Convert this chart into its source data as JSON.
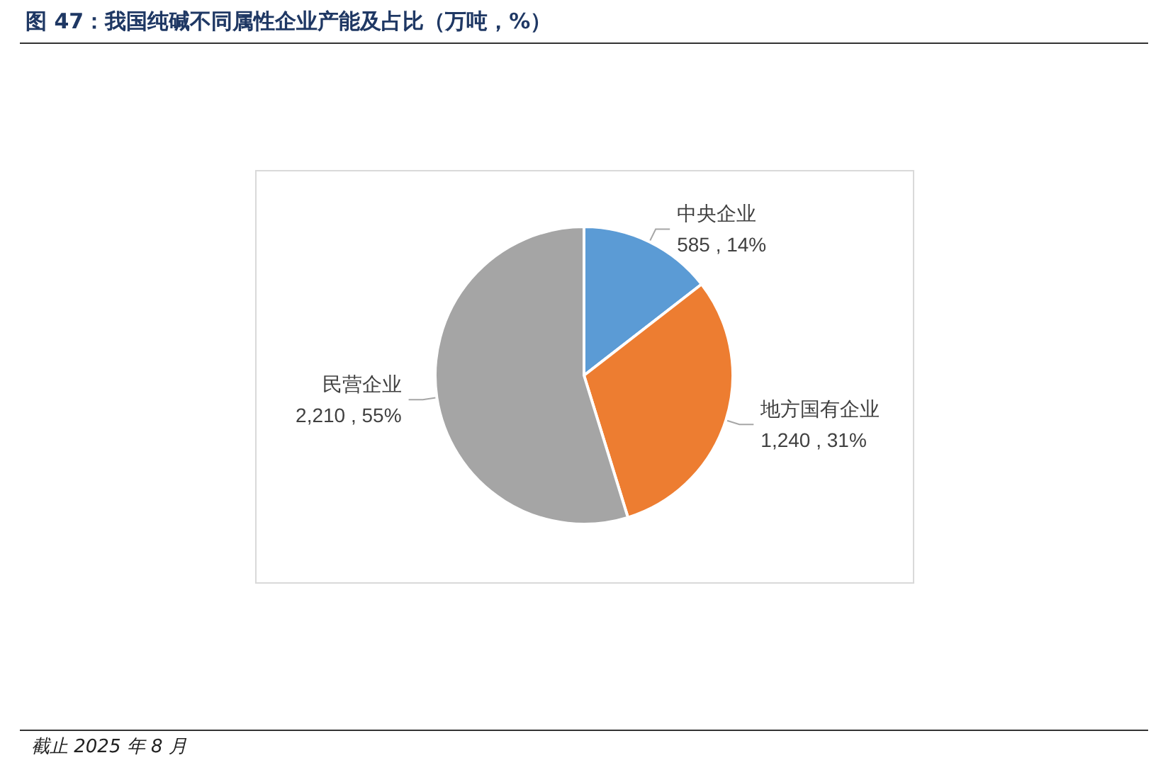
{
  "chart_data": {
    "type": "pie",
    "title": "图 47：我国纯碱不同属性企业产能及占比（万吨，%）",
    "categories": [
      "中央企业",
      "地方国有企业",
      "民营企业"
    ],
    "values": [
      585,
      1240,
      2210
    ],
    "value_labels": [
      "585 , 14%",
      "1,240 , 31%",
      "2,210 , 55%"
    ],
    "colors": [
      "#5b9bd5",
      "#ed7d31",
      "#a5a5a5"
    ],
    "legend": false,
    "annotations": [
      "截止 2025 年 8 月"
    ]
  }
}
